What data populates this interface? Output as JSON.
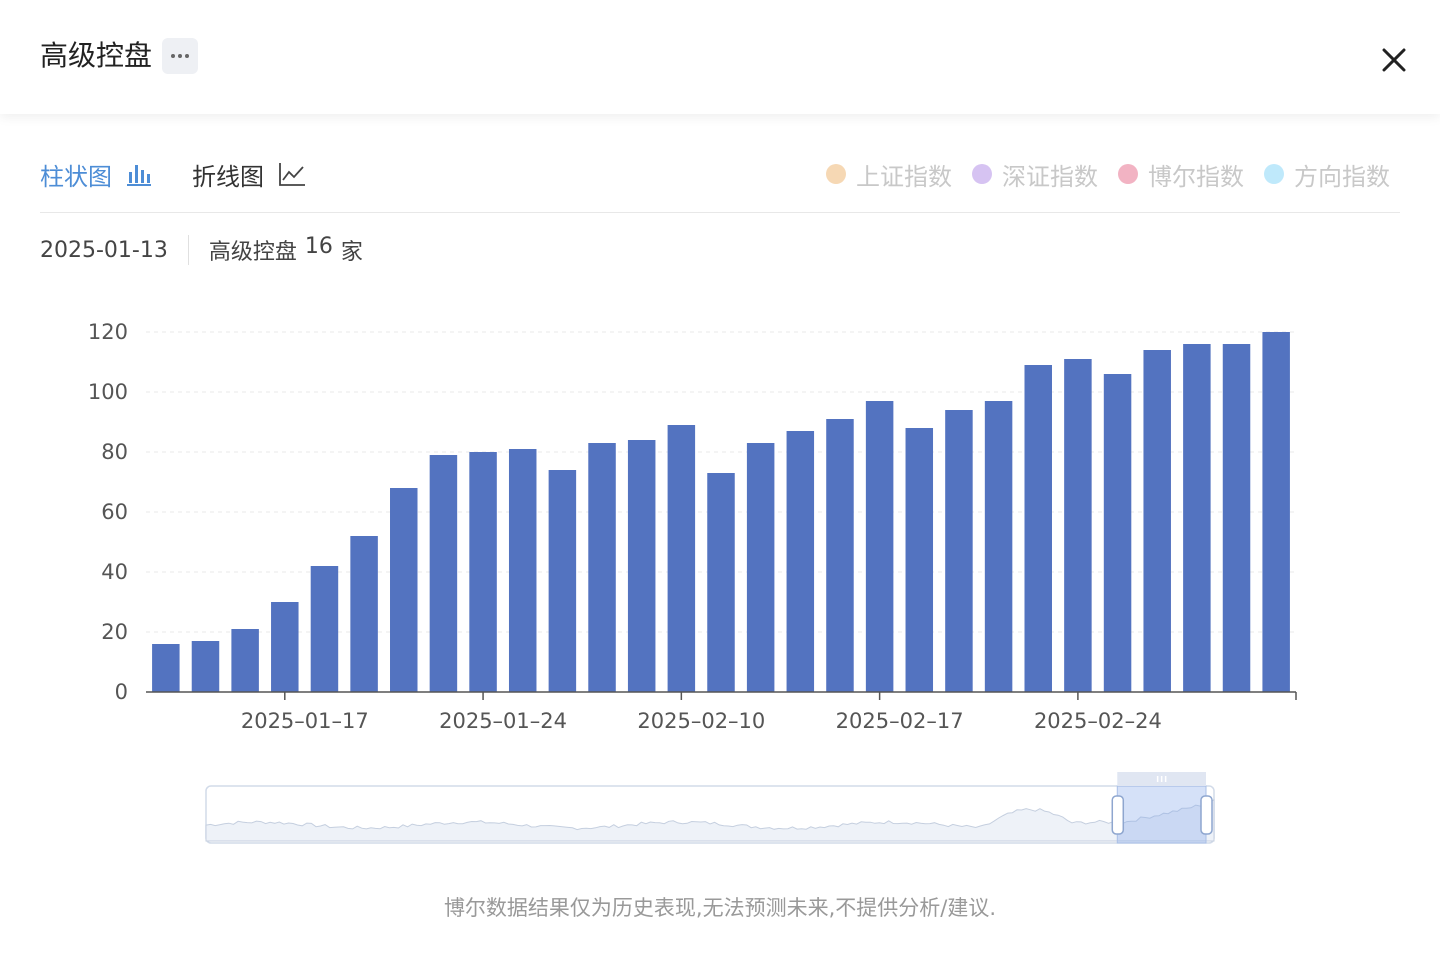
{
  "header": {
    "title": "高级控盘"
  },
  "tabs": [
    {
      "label": "柱状图",
      "icon": "bar-chart-icon"
    },
    {
      "label": "折线图",
      "icon": "line-chart-icon"
    }
  ],
  "legend": [
    {
      "label": "上证指数",
      "color": "#f6d8b4"
    },
    {
      "label": "深证指数",
      "color": "#d6c3f2"
    },
    {
      "label": "博尔指数",
      "color": "#f2b3c3"
    },
    {
      "label": "方向指数",
      "color": "#bfe9fb"
    }
  ],
  "info": {
    "date": "2025-01-13",
    "label": "高级控盘",
    "count": "16",
    "unit": "家"
  },
  "footer": {
    "disclaimer": "博尔数据结果仅为历史表现,无法预测未来,不提供分析/建议."
  },
  "colors": {
    "accent": "#4d8dd6",
    "bar": "#5373c0"
  },
  "chart_data": {
    "type": "bar",
    "values": [
      16,
      17,
      21,
      30,
      42,
      52,
      68,
      79,
      80,
      81,
      74,
      83,
      84,
      89,
      73,
      83,
      87,
      91,
      97,
      88,
      94,
      97,
      109,
      111,
      106,
      114,
      116,
      116,
      120
    ],
    "tick_labels": [
      {
        "index": 3.5,
        "label": "2025–01–17"
      },
      {
        "index": 8.5,
        "label": "2025–01–24"
      },
      {
        "index": 13.5,
        "label": "2025–02–10"
      },
      {
        "index": 18.5,
        "label": "2025–02–17"
      },
      {
        "index": 23.5,
        "label": "2025–02–24"
      }
    ],
    "yticks": [
      0,
      20,
      40,
      60,
      80,
      100,
      120
    ],
    "ylim": [
      0,
      120
    ],
    "grid": true,
    "data_zoom": {
      "start_fraction": 0.91,
      "end_fraction": 1.0
    }
  }
}
